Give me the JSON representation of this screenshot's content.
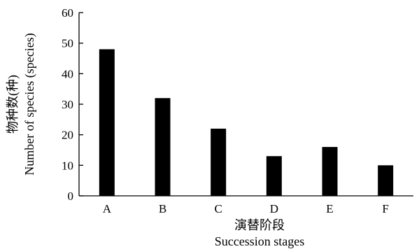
{
  "chart_data": {
    "type": "bar",
    "categories": [
      "A",
      "B",
      "C",
      "D",
      "E",
      "F"
    ],
    "values": [
      48,
      32,
      22,
      13,
      16,
      10
    ],
    "ylim": [
      0,
      60
    ],
    "yticks": [
      0,
      10,
      20,
      30,
      40,
      50,
      60
    ],
    "xlabel": "演替阶段",
    "xlabel_en": "Succession stages",
    "ylabel": "物种数(种)",
    "ylabel_en": "Number of species (species)",
    "grid": false,
    "bar_color": "#000000"
  }
}
